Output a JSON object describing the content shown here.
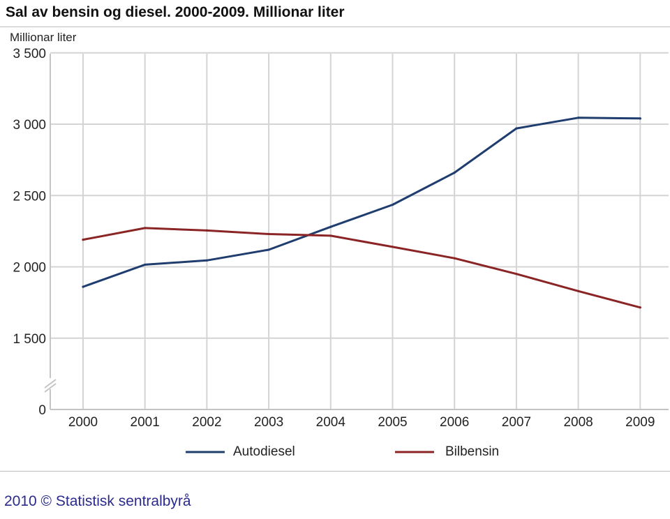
{
  "chart_data": {
    "type": "line",
    "title": "Sal av bensin og diesel. 2000-2009. Millionar liter",
    "ylabel": "Millionar liter",
    "xlabel": "",
    "categories": [
      "2000",
      "2001",
      "2002",
      "2003",
      "2004",
      "2005",
      "2006",
      "2007",
      "2008",
      "2009"
    ],
    "y_ticks": [
      "0",
      "1 500",
      "2 000",
      "2 500",
      "3 000",
      "3 500"
    ],
    "y_tick_values": [
      0,
      1500,
      2000,
      2500,
      3000,
      3500
    ],
    "ylim": [
      0,
      3500
    ],
    "y_axis_break": "between 0 and 1500",
    "grid": true,
    "legend_position": "bottom",
    "series": [
      {
        "name": "Autodiesel",
        "color": "#1f3d6e",
        "values": [
          1860,
          2015,
          2045,
          2120,
          2280,
          2435,
          2660,
          2970,
          3045,
          3040
        ]
      },
      {
        "name": "Bilbensin",
        "color": "#8b2525",
        "values": [
          2190,
          2272,
          2255,
          2230,
          2218,
          2140,
          2060,
          1950,
          1830,
          1715
        ]
      }
    ]
  },
  "footer": "2010 © Statistisk sentralbyrå"
}
